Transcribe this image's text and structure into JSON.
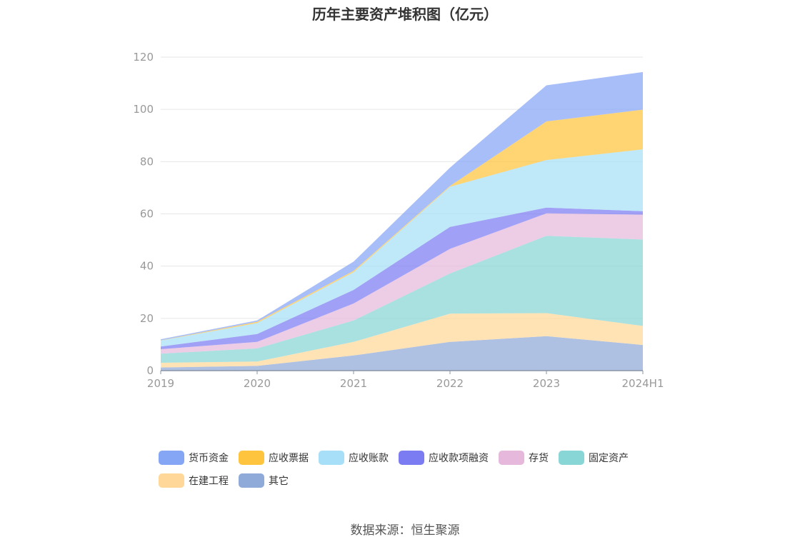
{
  "title": "历年主要资产堆积图（亿元）",
  "source": "数据来源：恒生聚源",
  "chart_data": {
    "type": "area",
    "stacked": true,
    "categories": [
      "2019",
      "2020",
      "2021",
      "2022",
      "2023",
      "2024H1"
    ],
    "ylim": [
      0,
      120
    ],
    "yticks": [
      0,
      20,
      40,
      60,
      80,
      100,
      120
    ],
    "grid": true,
    "legend_position": "bottom",
    "series": [
      {
        "name": "其它",
        "color": "#8fa9d8",
        "values": [
          1.2,
          1.8,
          5.8,
          11.0,
          13.2,
          9.8
        ]
      },
      {
        "name": "在建工程",
        "color": "#ffd899",
        "values": [
          1.8,
          1.7,
          5.2,
          10.8,
          8.8,
          7.3
        ]
      },
      {
        "name": "固定资产",
        "color": "#88d6d6",
        "values": [
          3.5,
          5.0,
          8.2,
          15.4,
          29.6,
          33.1
        ]
      },
      {
        "name": "存货",
        "color": "#e6b8dc",
        "values": [
          1.7,
          2.5,
          6.5,
          9.4,
          8.6,
          9.5
        ]
      },
      {
        "name": "应收款项融资",
        "color": "#7b7bf2",
        "values": [
          1.0,
          3.0,
          5.2,
          8.4,
          2.2,
          1.3
        ]
      },
      {
        "name": "应收账款",
        "color": "#a6dff7",
        "values": [
          2.3,
          4.2,
          6.8,
          15.4,
          18.2,
          23.7
        ]
      },
      {
        "name": "应收票据",
        "color": "#ffc43d",
        "values": [
          0.1,
          0.5,
          0.5,
          0.3,
          14.8,
          15.2
        ]
      },
      {
        "name": "货币资金",
        "color": "#85a5f5",
        "values": [
          0.4,
          0.5,
          3.5,
          7.0,
          13.8,
          14.4
        ]
      }
    ],
    "legend_order": [
      "货币资金",
      "应收票据",
      "应收账款",
      "应收款项融资",
      "存货",
      "固定资产",
      "在建工程",
      "其它"
    ]
  }
}
